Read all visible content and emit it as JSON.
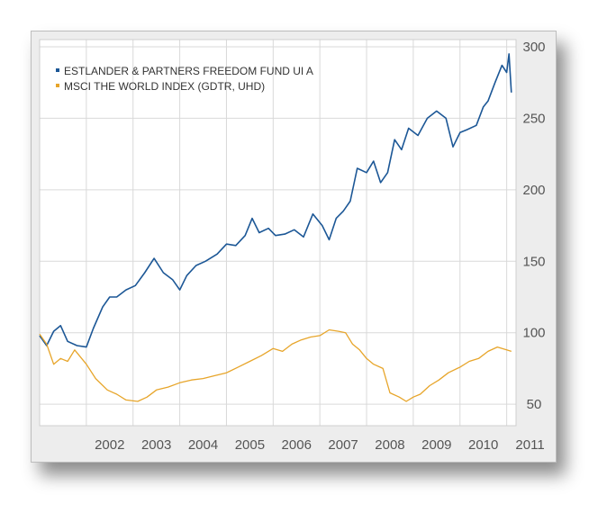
{
  "chart_data": {
    "type": "line",
    "title": "",
    "xlabel": "",
    "ylabel": "",
    "x_tick_labels": [
      "2002",
      "2003",
      "2004",
      "2005",
      "2006",
      "2007",
      "2008",
      "2009",
      "2010",
      "2011"
    ],
    "y_ticks": [
      50,
      100,
      150,
      200,
      250,
      300
    ],
    "y_tick_labels": [
      "50",
      "100",
      "150",
      "200",
      "250",
      "300"
    ],
    "xlim": [
      2001.0,
      2011.2
    ],
    "ylim": [
      35,
      305
    ],
    "grid": true,
    "legend_position": "top-left",
    "series": [
      {
        "name": "ESTLANDER & PARTNERS FREEDOM FUND UI A",
        "color": "#1c5796",
        "x": [
          2001.0,
          2001.15,
          2001.3,
          2001.45,
          2001.6,
          2001.8,
          2002.0,
          2002.15,
          2002.35,
          2002.5,
          2002.65,
          2002.85,
          2003.05,
          2003.25,
          2003.45,
          2003.65,
          2003.85,
          2004.0,
          2004.15,
          2004.35,
          2004.55,
          2004.8,
          2005.0,
          2005.2,
          2005.4,
          2005.55,
          2005.7,
          2005.9,
          2006.05,
          2006.25,
          2006.45,
          2006.65,
          2006.85,
          2007.05,
          2007.2,
          2007.35,
          2007.5,
          2007.65,
          2007.8,
          2008.0,
          2008.15,
          2008.3,
          2008.45,
          2008.6,
          2008.75,
          2008.9,
          2009.1,
          2009.3,
          2009.5,
          2009.7,
          2009.85,
          2010.0,
          2010.15,
          2010.35,
          2010.5,
          2010.6,
          2010.75,
          2010.9,
          2011.0,
          2011.05,
          2011.1
        ],
        "y": [
          98,
          91,
          101,
          105,
          94,
          91,
          90,
          103,
          118,
          125,
          125,
          130,
          133,
          142,
          152,
          142,
          137,
          130,
          140,
          147,
          150,
          155,
          162,
          161,
          168,
          180,
          170,
          173,
          168,
          169,
          172,
          167,
          183,
          175,
          165,
          180,
          185,
          192,
          215,
          212,
          220,
          205,
          212,
          235,
          228,
          243,
          238,
          250,
          255,
          250,
          230,
          240,
          242,
          245,
          258,
          262,
          275,
          287,
          282,
          295,
          268
        ]
      },
      {
        "name": "MSCI THE WORLD INDEX (GDTR, UHD)",
        "color": "#e7a52a",
        "x": [
          2001.0,
          2001.15,
          2001.3,
          2001.45,
          2001.6,
          2001.75,
          2002.0,
          2002.2,
          2002.45,
          2002.65,
          2002.85,
          2003.1,
          2003.3,
          2003.5,
          2003.75,
          2004.0,
          2004.25,
          2004.5,
          2004.75,
          2005.0,
          2005.25,
          2005.5,
          2005.75,
          2006.0,
          2006.2,
          2006.4,
          2006.6,
          2006.8,
          2007.0,
          2007.2,
          2007.4,
          2007.55,
          2007.7,
          2007.85,
          2008.0,
          2008.15,
          2008.35,
          2008.5,
          2008.7,
          2008.85,
          2009.0,
          2009.15,
          2009.35,
          2009.55,
          2009.75,
          2010.0,
          2010.2,
          2010.4,
          2010.6,
          2010.8,
          2011.0,
          2011.1
        ],
        "y": [
          99,
          92,
          78,
          82,
          80,
          88,
          78,
          68,
          60,
          57,
          53,
          52,
          55,
          60,
          62,
          65,
          67,
          68,
          70,
          72,
          76,
          80,
          84,
          89,
          87,
          92,
          95,
          97,
          98,
          102,
          101,
          100,
          92,
          88,
          82,
          78,
          75,
          58,
          55,
          52,
          55,
          57,
          63,
          67,
          72,
          76,
          80,
          82,
          87,
          90,
          88,
          87
        ]
      }
    ]
  }
}
